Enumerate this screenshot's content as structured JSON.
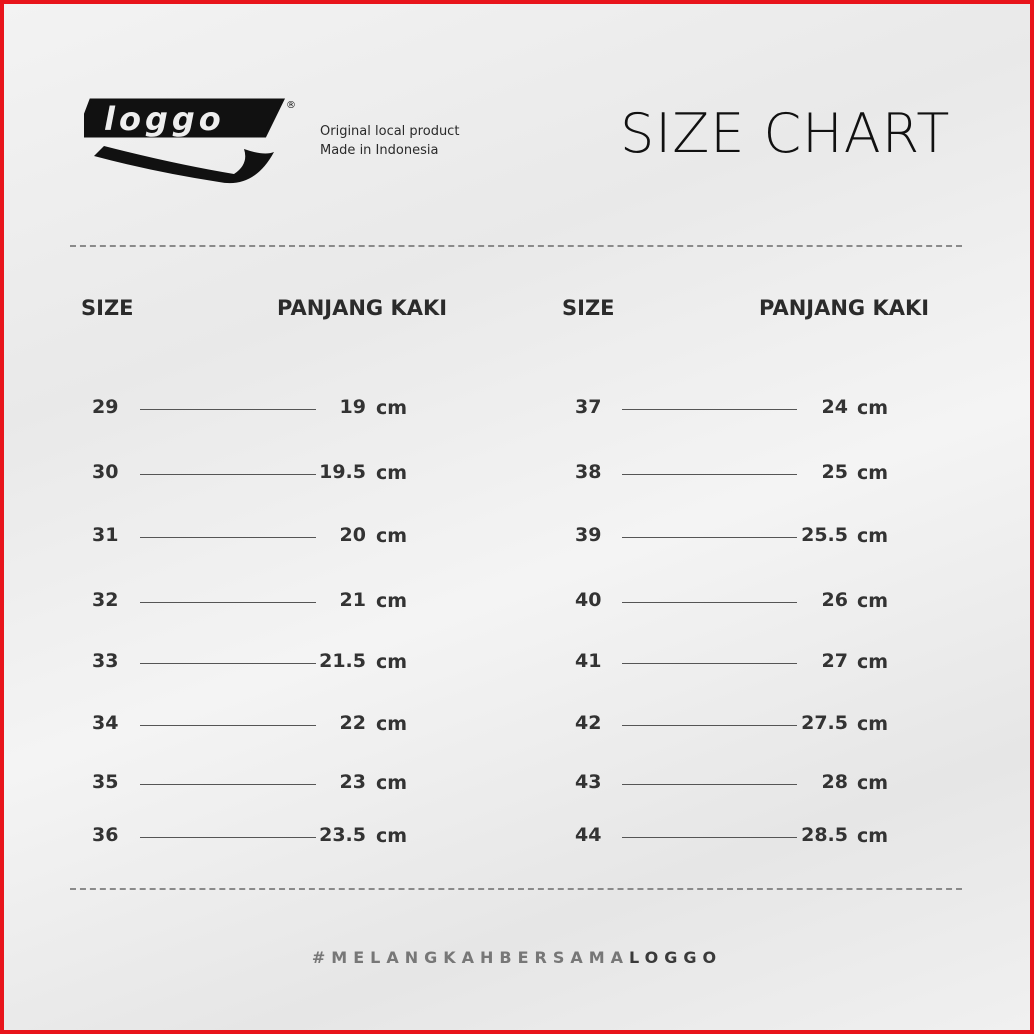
{
  "brand": {
    "logo_text": "LOGGO",
    "tagline_1": "Original local product",
    "tagline_2": "Made in Indonesia"
  },
  "title": "SIZE CHART",
  "headers": {
    "size": "SIZE",
    "length": "PANJANG KAKI"
  },
  "unit": "cm",
  "left_rows": [
    {
      "size": "29",
      "length": "19"
    },
    {
      "size": "30",
      "length": "19.5"
    },
    {
      "size": "31",
      "length": "20"
    },
    {
      "size": "32",
      "length": "21"
    },
    {
      "size": "33",
      "length": "21.5"
    },
    {
      "size": "34",
      "length": "22"
    },
    {
      "size": "35",
      "length": "23"
    },
    {
      "size": "36",
      "length": "23.5"
    }
  ],
  "right_rows": [
    {
      "size": "37",
      "length": "24"
    },
    {
      "size": "38",
      "length": "25"
    },
    {
      "size": "39",
      "length": "25.5"
    },
    {
      "size": "40",
      "length": "26"
    },
    {
      "size": "41",
      "length": "27"
    },
    {
      "size": "42",
      "length": "27.5"
    },
    {
      "size": "43",
      "length": "28"
    },
    {
      "size": "44",
      "length": "28.5"
    }
  ],
  "hashtag": {
    "part1": "#MELANGKAHBERSAMA",
    "part2": "LOGGO"
  },
  "colors": {
    "border": "#e8141b",
    "text": "#333333"
  }
}
